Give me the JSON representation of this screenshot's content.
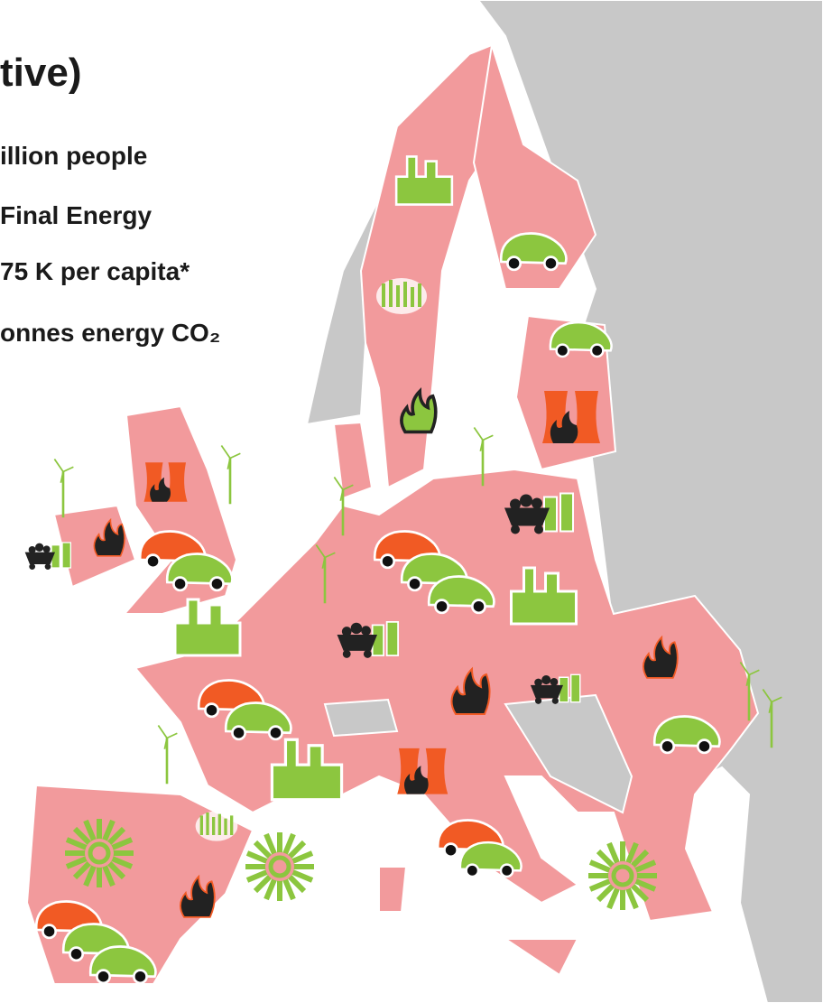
{
  "title": "tive)",
  "lines": [
    "illion people",
    "Final Energy",
    "75 K per capita*",
    "onnes energy CO₂"
  ]
}
